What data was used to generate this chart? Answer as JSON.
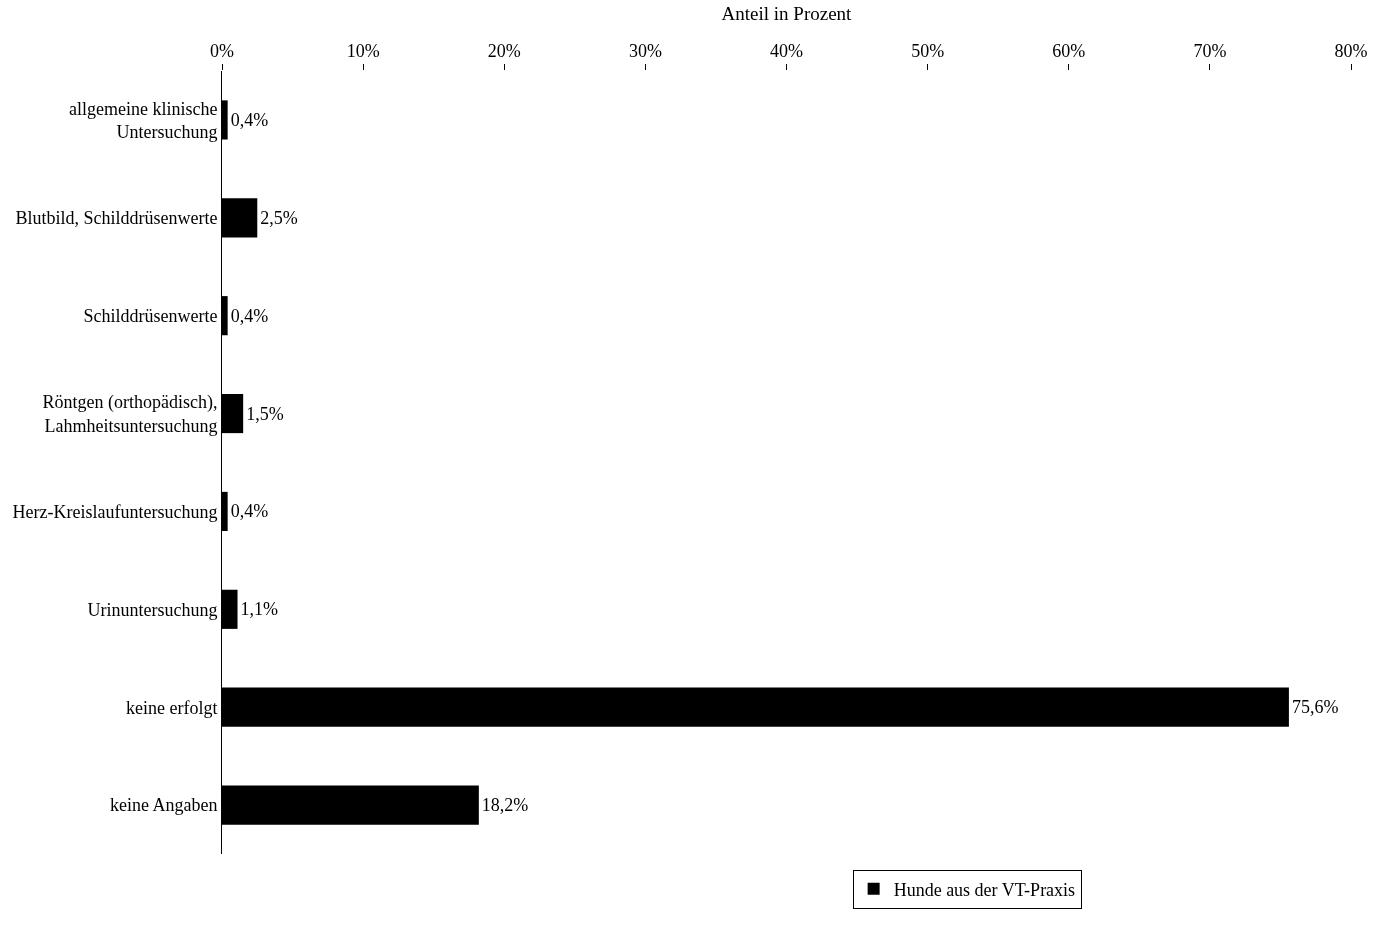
{
  "chart_data": {
    "type": "bar",
    "orientation": "horizontal",
    "xlabel": "Anteil in Prozent",
    "categories": [
      "allgemeine klinische\nUntersuchung",
      "Blutbild, Schilddrüsenwerte",
      "Schilddrüsenwerte",
      "Röntgen (orthopädisch),\nLahmheitsuntersuchung",
      "Herz-Kreislaufuntersuchung",
      "Urinuntersuchung",
      "keine erfolgt",
      "keine Angaben"
    ],
    "series": [
      {
        "name": "Hunde aus der VT-Praxis",
        "color": "#000000",
        "values": [
          0.4,
          2.5,
          0.4,
          1.5,
          0.4,
          1.1,
          75.6,
          18.2
        ],
        "value_labels": [
          "0,4%",
          "2,5%",
          "0,4%",
          "1,5%",
          "0,4%",
          "1,1%",
          "75,6%",
          "18,2%"
        ]
      }
    ],
    "xlim": [
      0,
      80
    ],
    "xticks": [
      {
        "value": 0,
        "label": "0%"
      },
      {
        "value": 10,
        "label": "10%"
      },
      {
        "value": 20,
        "label": "20%"
      },
      {
        "value": 30,
        "label": "30%"
      },
      {
        "value": 40,
        "label": "40%"
      },
      {
        "value": 50,
        "label": "50%"
      },
      {
        "value": 60,
        "label": "60%"
      },
      {
        "value": 70,
        "label": "70%"
      },
      {
        "value": 80,
        "label": "80%"
      }
    ],
    "legend": "bottom"
  }
}
